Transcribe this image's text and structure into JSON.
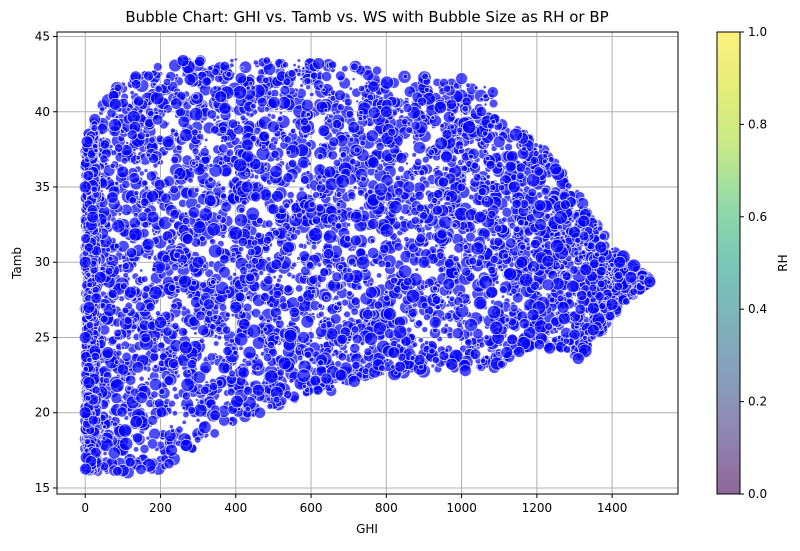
{
  "chart_data": {
    "type": "scatter",
    "title": "Bubble Chart: GHI vs. Tamb vs. WS with Bubble Size as RH or BP",
    "xlabel": "GHI",
    "ylabel": "Tamb",
    "xlim": [
      -75,
      1575
    ],
    "ylim": [
      14.6,
      45.3
    ],
    "xticks": [
      0,
      200,
      400,
      600,
      800,
      1000,
      1200,
      1400
    ],
    "yticks": [
      15,
      20,
      25,
      30,
      35,
      40,
      45
    ],
    "grid": true,
    "marker_color": "#0000ff",
    "marker_edge_color": "#ffffff",
    "marker_alpha": 0.7,
    "colorbar": {
      "label": "RH",
      "range": [
        0,
        1
      ],
      "ticks": [
        "0.0",
        "0.2",
        "0.4",
        "0.6",
        "0.8",
        "1.0"
      ],
      "colormap": "viridis",
      "alpha": 0.6
    },
    "envelope": {
      "description_of_upper_edge_ghi_tamb": [
        [
          0,
          38
        ],
        [
          50,
          41
        ],
        [
          100,
          42.2
        ],
        [
          250,
          43.5
        ],
        [
          600,
          43.5
        ],
        [
          1000,
          42
        ],
        [
          1080,
          41.8
        ],
        [
          1100,
          39.5
        ],
        [
          1200,
          38.2
        ],
        [
          1300,
          35
        ],
        [
          1400,
          31
        ],
        [
          1480,
          29.3
        ],
        [
          1500,
          28.8
        ]
      ],
      "description_of_lower_edge_ghi_tamb": [
        [
          0,
          16
        ],
        [
          200,
          16
        ],
        [
          400,
          19.5
        ],
        [
          600,
          21
        ],
        [
          800,
          22.5
        ],
        [
          1000,
          23
        ],
        [
          1100,
          23
        ],
        [
          1200,
          24.5
        ],
        [
          1320,
          23.6
        ],
        [
          1400,
          26.5
        ],
        [
          1500,
          28.7
        ]
      ]
    },
    "series": [
      {
        "points": [
          [
            0,
            30
          ],
          [
            0,
            25
          ],
          [
            0,
            20
          ],
          [
            0,
            35
          ],
          [
            5,
            38
          ],
          [
            10,
            27
          ],
          [
            10,
            22
          ],
          [
            20,
            33
          ],
          [
            40,
            29
          ],
          [
            60,
            24
          ],
          [
            80,
            40.5
          ],
          [
            100,
            36
          ],
          [
            120,
            28
          ],
          [
            150,
            21
          ],
          [
            180,
            33
          ],
          [
            200,
            26
          ],
          [
            220,
            38
          ],
          [
            260,
            43.4
          ],
          [
            300,
            30
          ],
          [
            320,
            23
          ],
          [
            360,
            41
          ],
          [
            400,
            27
          ],
          [
            430,
            35
          ],
          [
            460,
            21.5
          ],
          [
            500,
            39
          ],
          [
            540,
            31
          ],
          [
            580,
            25
          ],
          [
            620,
            43.2
          ],
          [
            650,
            36
          ],
          [
            680,
            22.5
          ],
          [
            720,
            33
          ],
          [
            760,
            28
          ],
          [
            800,
            40
          ],
          [
            820,
            24
          ],
          [
            860,
            35
          ],
          [
            900,
            30
          ],
          [
            930,
            26
          ],
          [
            960,
            37
          ],
          [
            1000,
            42.2
          ],
          [
            1010,
            22.8
          ],
          [
            1050,
            33
          ],
          [
            1080,
            28
          ],
          [
            1100,
            38
          ],
          [
            1120,
            24
          ],
          [
            1140,
            35
          ],
          [
            1160,
            30
          ],
          [
            1190,
            26.5
          ],
          [
            1210,
            32.5
          ],
          [
            1230,
            28.5
          ],
          [
            1250,
            36.2
          ],
          [
            1270,
            27
          ],
          [
            1300,
            32
          ],
          [
            1310,
            23.6
          ],
          [
            1330,
            29.5
          ],
          [
            1350,
            25.5
          ],
          [
            1370,
            31
          ],
          [
            1400,
            27.2
          ],
          [
            1420,
            30
          ],
          [
            1450,
            29
          ],
          [
            1500,
            28.7
          ]
        ]
      }
    ]
  }
}
